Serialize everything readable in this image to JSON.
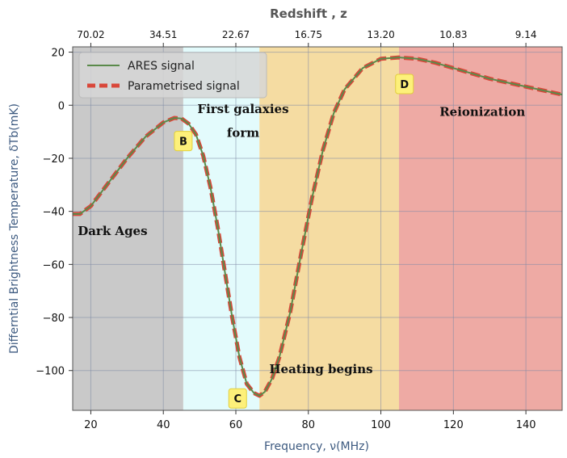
{
  "chart_data": {
    "type": "line",
    "xlabel": "Frequency, ν(MHz)",
    "ylabel": "Differntial Brightness Temperature, δTb(mK)",
    "top_axis_label": "Redshift , z",
    "xlim": [
      15,
      150
    ],
    "ylim": [
      -115,
      22
    ],
    "x_ticks": [
      20,
      40,
      60,
      80,
      100,
      120,
      140
    ],
    "y_ticks": [
      20,
      0,
      -20,
      -40,
      -60,
      -80,
      -100
    ],
    "top_ticks": [
      {
        "freq": 20,
        "label": "70.02"
      },
      {
        "freq": 40,
        "label": "34.51"
      },
      {
        "freq": 60,
        "label": "22.67"
      },
      {
        "freq": 80,
        "label": "16.75"
      },
      {
        "freq": 100,
        "label": "13.20"
      },
      {
        "freq": 120,
        "label": "10.83"
      },
      {
        "freq": 140,
        "label": "9.14"
      }
    ],
    "grid": true,
    "legend_position": "top-left",
    "series": [
      {
        "name": "ARES signal",
        "color": "#5a8a4a",
        "style": "solid",
        "x": [
          15,
          17,
          20,
          25,
          30,
          35,
          40,
          43,
          45,
          47,
          49,
          51,
          53,
          55,
          57,
          59,
          61,
          63,
          65,
          66.5,
          68,
          70,
          72,
          75,
          78,
          81,
          84,
          87,
          90,
          95,
          100,
          105,
          110,
          115,
          120,
          125,
          130,
          135,
          140,
          145,
          150
        ],
        "y": [
          -41,
          -41,
          -38,
          -29,
          -20,
          -12,
          -6.5,
          -4.8,
          -5,
          -7,
          -11,
          -19,
          -31,
          -46,
          -63,
          -80,
          -95,
          -105,
          -108.5,
          -109.5,
          -108,
          -103,
          -95,
          -78,
          -56,
          -35,
          -17,
          -3,
          6,
          14,
          17.5,
          18,
          17.5,
          16,
          14,
          12,
          10,
          8.5,
          7,
          5.5,
          4
        ]
      },
      {
        "name": "Parametrised signal",
        "color": "#d9473a",
        "style": "dashed",
        "x": [
          15,
          17,
          20,
          25,
          30,
          35,
          40,
          43,
          45,
          47,
          49,
          51,
          53,
          55,
          57,
          59,
          61,
          63,
          65,
          66.5,
          68,
          70,
          72,
          75,
          78,
          81,
          84,
          87,
          90,
          95,
          100,
          105,
          110,
          115,
          120,
          125,
          130,
          135,
          140,
          145,
          150
        ],
        "y": [
          -41,
          -41,
          -38,
          -29,
          -20,
          -12,
          -6.5,
          -4.8,
          -5,
          -7,
          -11,
          -19,
          -31,
          -46,
          -63,
          -80,
          -95,
          -105,
          -108.5,
          -109.5,
          -108,
          -103,
          -95,
          -78,
          -56,
          -35,
          -17,
          -3,
          6,
          14,
          17.5,
          18,
          17.5,
          16,
          14,
          12,
          10,
          8.5,
          7,
          5.5,
          4
        ]
      }
    ],
    "regions": [
      {
        "from": 15,
        "to": 45.5,
        "color": "#c9c9c9"
      },
      {
        "from": 45.5,
        "to": 66.5,
        "color": "#e3fbfc"
      },
      {
        "from": 66.5,
        "to": 105,
        "color": "#f5dca2"
      },
      {
        "from": 105,
        "to": 150,
        "color": "#eeaaa4"
      }
    ],
    "annotations": [
      {
        "text": "Dark Ages",
        "x": 26,
        "y": -49
      },
      {
        "text": "First galaxies",
        "x": 62,
        "y": -3
      },
      {
        "text": "form",
        "x": 62,
        "y": -12
      },
      {
        "text": "Heating begins",
        "x": 83.5,
        "y": -101
      },
      {
        "text": "Reionization",
        "x": 128,
        "y": -4
      }
    ],
    "markers": [
      {
        "text": "B",
        "x": 45.5,
        "y": -13.5
      },
      {
        "text": "C",
        "x": 60.5,
        "y": -110.5
      },
      {
        "text": "D",
        "x": 106.5,
        "y": 8
      }
    ]
  }
}
